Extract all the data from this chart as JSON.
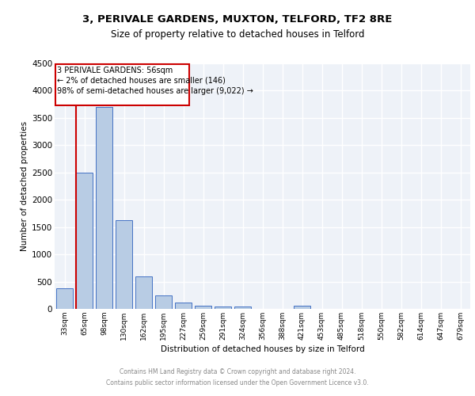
{
  "title": "3, PERIVALE GARDENS, MUXTON, TELFORD, TF2 8RE",
  "subtitle": "Size of property relative to detached houses in Telford",
  "xlabel": "Distribution of detached houses by size in Telford",
  "ylabel": "Number of detached properties",
  "categories": [
    "33sqm",
    "65sqm",
    "98sqm",
    "130sqm",
    "162sqm",
    "195sqm",
    "227sqm",
    "259sqm",
    "291sqm",
    "324sqm",
    "356sqm",
    "388sqm",
    "421sqm",
    "453sqm",
    "485sqm",
    "518sqm",
    "550sqm",
    "582sqm",
    "614sqm",
    "647sqm",
    "679sqm"
  ],
  "values": [
    375,
    2500,
    3700,
    1630,
    600,
    245,
    110,
    65,
    50,
    45,
    0,
    0,
    60,
    0,
    0,
    0,
    0,
    0,
    0,
    0,
    0
  ],
  "bar_color": "#b8cce4",
  "bar_edge_color": "#4472c4",
  "ylim": [
    0,
    4500
  ],
  "yticks": [
    0,
    500,
    1000,
    1500,
    2000,
    2500,
    3000,
    3500,
    4000,
    4500
  ],
  "property_line_color": "#cc0000",
  "annotation_title": "3 PERIVALE GARDENS: 56sqm",
  "annotation_line1": "← 2% of detached houses are smaller (146)",
  "annotation_line2": "98% of semi-detached houses are larger (9,022) →",
  "annotation_box_color": "#cc0000",
  "background_color": "#eef2f8",
  "grid_color": "#ffffff",
  "footer_line1": "Contains HM Land Registry data © Crown copyright and database right 2024.",
  "footer_line2": "Contains public sector information licensed under the Open Government Licence v3.0."
}
